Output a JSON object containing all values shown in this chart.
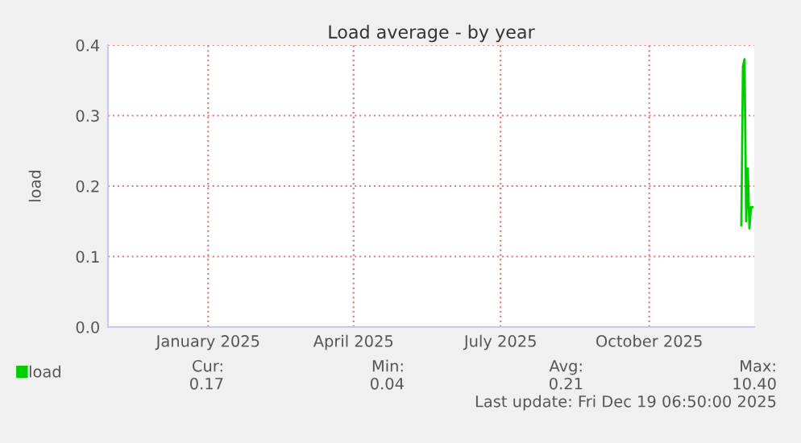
{
  "chart_data": {
    "type": "line",
    "title": "Load average - by year",
    "ylabel": "load",
    "x": [
      "2025-12-11",
      "2025-12-12",
      "2025-12-13",
      "2025-12-14",
      "2025-12-15",
      "2025-12-16",
      "2025-12-17",
      "2025-12-18"
    ],
    "series": [
      {
        "name": "load",
        "color": "#00cc00",
        "values": [
          0.144,
          0.37,
          0.38,
          0.15,
          0.225,
          0.14,
          0.17,
          0.17
        ]
      }
    ],
    "xlim": [
      "2024-11-14",
      "2025-12-19"
    ],
    "xticks": [
      {
        "value": "2025-01-15",
        "label": "January 2025"
      },
      {
        "value": "2025-04-15",
        "label": "April 2025"
      },
      {
        "value": "2025-07-15",
        "label": "July 2025"
      },
      {
        "value": "2025-10-15",
        "label": "October 2025"
      }
    ],
    "ylim": [
      0,
      0.4
    ],
    "yticks": [
      {
        "value": 0,
        "label": "0.0"
      },
      {
        "value": 0.1,
        "label": "0.1"
      },
      {
        "value": 0.2,
        "label": "0.2"
      },
      {
        "value": 0.3,
        "label": "0.3"
      },
      {
        "value": 0.4,
        "label": "0.4"
      }
    ],
    "grid": true,
    "legend": "bottom left",
    "annotations": [
      "Cur:",
      "Min:",
      "Avg:",
      "Max:",
      "0.17",
      "0.04",
      "0.21",
      "10.40",
      "Last update: Fri Dec 19 06:50:00 2025"
    ]
  }
}
